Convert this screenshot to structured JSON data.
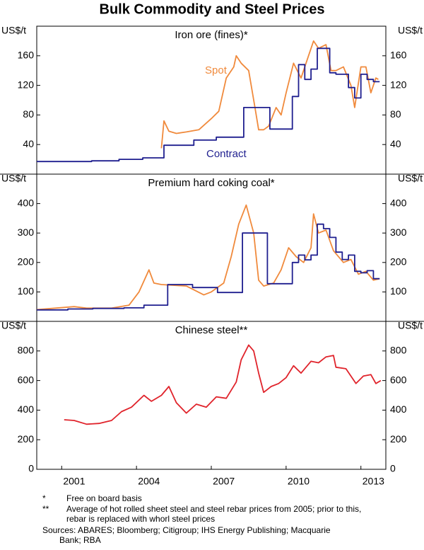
{
  "title": "Bulk Commodity and Steel Prices",
  "chart_data": [
    {
      "type": "line",
      "title": "Iron ore (fines)*",
      "y_label": "US$/t",
      "y2_label": "US$/t",
      "xlim": [
        2000,
        2014
      ],
      "ylim": [
        0,
        200
      ],
      "yticks": [
        40,
        80,
        120,
        160
      ],
      "y2lim": [
        0,
        200
      ],
      "y2ticks": [
        40,
        80,
        120,
        160
      ],
      "series": [
        {
          "name": "Spot",
          "color": "#f08a3c",
          "x": [
            2005.0,
            2005.1,
            2005.3,
            2005.6,
            2006.0,
            2006.5,
            2007.0,
            2007.3,
            2007.6,
            2007.9,
            2008.0,
            2008.2,
            2008.5,
            2008.75,
            2008.9,
            2009.1,
            2009.3,
            2009.6,
            2009.8,
            2010.0,
            2010.3,
            2010.6,
            2010.9,
            2011.1,
            2011.3,
            2011.6,
            2011.8,
            2012.0,
            2012.3,
            2012.6,
            2012.75,
            2013.0,
            2013.2,
            2013.4,
            2013.6,
            2013.7
          ],
          "values": [
            35,
            72,
            58,
            55,
            57,
            60,
            75,
            85,
            130,
            145,
            160,
            150,
            140,
            90,
            60,
            60,
            65,
            90,
            80,
            110,
            150,
            130,
            160,
            180,
            170,
            175,
            140,
            140,
            145,
            120,
            90,
            145,
            145,
            110,
            130,
            128
          ]
        },
        {
          "name": "Contract",
          "color": "#1f1f8f",
          "x": [
            2000,
            2002.2,
            2002.2,
            2003.3,
            2003.3,
            2004.25,
            2004.25,
            2005.1,
            2005.1,
            2006.3,
            2006.3,
            2007.2,
            2007.2,
            2008.3,
            2008.3,
            2009.35,
            2009.35,
            2010.25,
            2010.25,
            2010.5,
            2010.5,
            2010.75,
            2010.75,
            2011,
            2011,
            2011.25,
            2011.25,
            2011.75,
            2011.75,
            2012,
            2012,
            2012.5,
            2012.5,
            2012.75,
            2012.75,
            2013,
            2013,
            2013.25,
            2013.25,
            2013.5,
            2013.5,
            2013.75
          ],
          "values": [
            17,
            17,
            18,
            18,
            20,
            20,
            22,
            22,
            39,
            39,
            46,
            46,
            50,
            50,
            90,
            90,
            61,
            61,
            105,
            105,
            148,
            148,
            128,
            128,
            142,
            142,
            170,
            170,
            137,
            137,
            135,
            135,
            117,
            117,
            103,
            103,
            135,
            135,
            128,
            128,
            125,
            125
          ]
        }
      ]
    },
    {
      "type": "line",
      "title": "Premium hard coking coal*",
      "y_label": "US$/t",
      "y2_label": "US$/t",
      "xlim": [
        2000,
        2014
      ],
      "ylim": [
        0,
        500
      ],
      "yticks": [
        100,
        200,
        300,
        400
      ],
      "y2lim": [
        0,
        500
      ],
      "y2ticks": [
        100,
        200,
        300,
        400
      ],
      "series": [
        {
          "color": "#f08a3c",
          "x": [
            2000,
            2001.5,
            2002,
            2003,
            2003.7,
            2004.1,
            2004.5,
            2004.7,
            2005,
            2006,
            2006.7,
            2007,
            2007.5,
            2007.8,
            2008.1,
            2008.4,
            2008.7,
            2008.9,
            2009.1,
            2009.5,
            2009.8,
            2010.1,
            2010.4,
            2010.7,
            2011,
            2011.1,
            2011.3,
            2011.6,
            2011.9,
            2012.3,
            2012.6,
            2012.9,
            2013.2,
            2013.5,
            2013.75
          ],
          "values": [
            40,
            50,
            45,
            45,
            55,
            100,
            175,
            130,
            125,
            120,
            90,
            100,
            130,
            220,
            330,
            395,
            300,
            140,
            120,
            130,
            175,
            250,
            220,
            200,
            250,
            365,
            300,
            310,
            240,
            200,
            210,
            160,
            170,
            140,
            145
          ]
        },
        {
          "color": "#1f1f8f",
          "x": [
            2000,
            2001.25,
            2001.25,
            2002.25,
            2002.25,
            2003.5,
            2003.5,
            2004.3,
            2004.3,
            2005.25,
            2005.25,
            2006.25,
            2006.25,
            2007.25,
            2007.25,
            2008.25,
            2008.25,
            2009.25,
            2009.25,
            2010.25,
            2010.25,
            2010.5,
            2010.5,
            2010.75,
            2010.75,
            2011,
            2011,
            2011.25,
            2011.25,
            2011.5,
            2011.5,
            2011.75,
            2011.75,
            2012,
            2012,
            2012.25,
            2012.25,
            2012.5,
            2012.5,
            2012.75,
            2012.75,
            2013,
            2013,
            2013.25,
            2013.25,
            2013.5,
            2013.5,
            2013.75
          ],
          "values": [
            39,
            39,
            42,
            42,
            44,
            44,
            46,
            46,
            55,
            55,
            125,
            125,
            115,
            115,
            98,
            98,
            300,
            300,
            128,
            128,
            200,
            200,
            225,
            225,
            209,
            209,
            225,
            225,
            330,
            330,
            315,
            315,
            285,
            285,
            235,
            235,
            210,
            210,
            225,
            225,
            170,
            170,
            165,
            165,
            172,
            172,
            145,
            145
          ]
        }
      ]
    },
    {
      "type": "line",
      "title": "Chinese steel**",
      "y_label": "US$/t",
      "y2_label": "US$/t",
      "xlim": [
        2000,
        2014
      ],
      "ylim": [
        0,
        1000
      ],
      "yticks": [
        0,
        200,
        400,
        600,
        800
      ],
      "y2lim": [
        0,
        1000
      ],
      "y2ticks": [
        0,
        200,
        400,
        600,
        800
      ],
      "xticks": [
        2001,
        2004,
        2007,
        2010,
        2013
      ],
      "series": [
        {
          "color": "#e0232b",
          "x": [
            2001.1,
            2001.5,
            2002,
            2002.5,
            2003,
            2003.4,
            2003.8,
            2004.3,
            2004.6,
            2005,
            2005.3,
            2005.6,
            2006,
            2006.4,
            2006.8,
            2007.2,
            2007.6,
            2008,
            2008.2,
            2008.5,
            2008.7,
            2008.9,
            2009.1,
            2009.4,
            2009.7,
            2010,
            2010.3,
            2010.6,
            2011,
            2011.3,
            2011.6,
            2011.9,
            2012,
            2012.4,
            2012.8,
            2013.1,
            2013.4,
            2013.6,
            2013.8
          ],
          "values": [
            335,
            330,
            305,
            310,
            330,
            390,
            420,
            500,
            460,
            500,
            560,
            450,
            380,
            440,
            420,
            490,
            480,
            590,
            740,
            840,
            800,
            650,
            520,
            560,
            580,
            620,
            700,
            650,
            730,
            720,
            760,
            770,
            690,
            680,
            580,
            630,
            640,
            580,
            600
          ]
        }
      ]
    }
  ],
  "notes": [
    {
      "marker": "*",
      "text": "Free on board basis"
    },
    {
      "marker": "**",
      "text": "Average of hot rolled sheet steel and steel rebar prices from 2005; prior to this, rebar is replaced with whorl steel prices"
    }
  ],
  "sources": "Sources: ABARES; Bloomberg; Citigroup; IHS Energy Publishing; Macquarie Bank; RBA"
}
